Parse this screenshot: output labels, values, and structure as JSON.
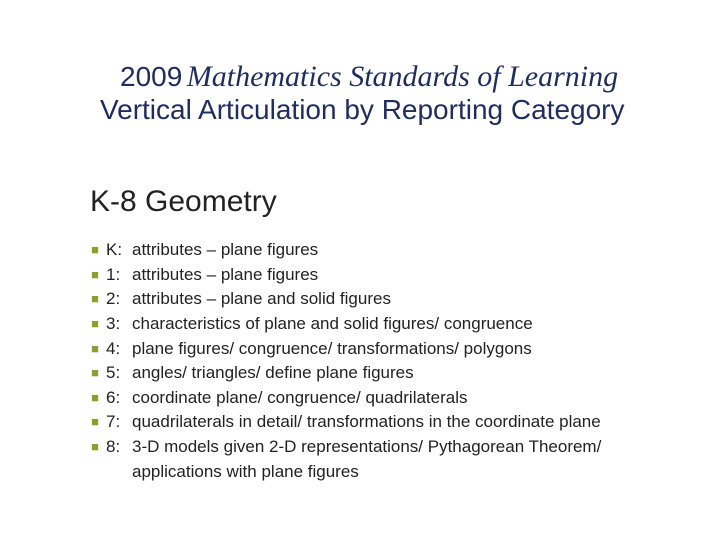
{
  "title": {
    "year": "2009",
    "italic_part": "Mathematics Standards of Learning",
    "line2": "Vertical Articulation by Reporting Category"
  },
  "subtitle": "K-8 Geometry",
  "items": [
    {
      "grade": "K:",
      "desc": "attributes – plane figures"
    },
    {
      "grade": "1:",
      "desc": "attributes – plane figures"
    },
    {
      "grade": "2:",
      "desc": "attributes – plane and solid figures"
    },
    {
      "grade": "3:",
      "desc": "characteristics of plane and solid figures/ congruence"
    },
    {
      "grade": "4:",
      "desc": "plane figures/ congruence/ transformations/ polygons"
    },
    {
      "grade": "5:",
      "desc": "angles/ triangles/ define plane figures"
    },
    {
      "grade": "6:",
      "desc": "coordinate plane/ congruence/ quadrilaterals"
    },
    {
      "grade": "7:",
      "desc": "quadrilaterals in detail/ transformations in the coordinate plane"
    },
    {
      "grade": "8:",
      "desc": "3-D models given 2-D representations/ Pythagorean Theorem/ applications with plane figures"
    }
  ],
  "colors": {
    "title_color": "#1f2c5e",
    "text_color": "#222222",
    "bullet_color": "#8aa132",
    "background": "#ffffff"
  },
  "typography": {
    "title_year_fontsize": 28,
    "title_italic_fontsize": 30,
    "title_line2_fontsize": 28,
    "subtitle_fontsize": 30,
    "body_fontsize": 17,
    "title_font": "Verdana",
    "italic_font": "Georgia",
    "body_font": "Verdana"
  }
}
